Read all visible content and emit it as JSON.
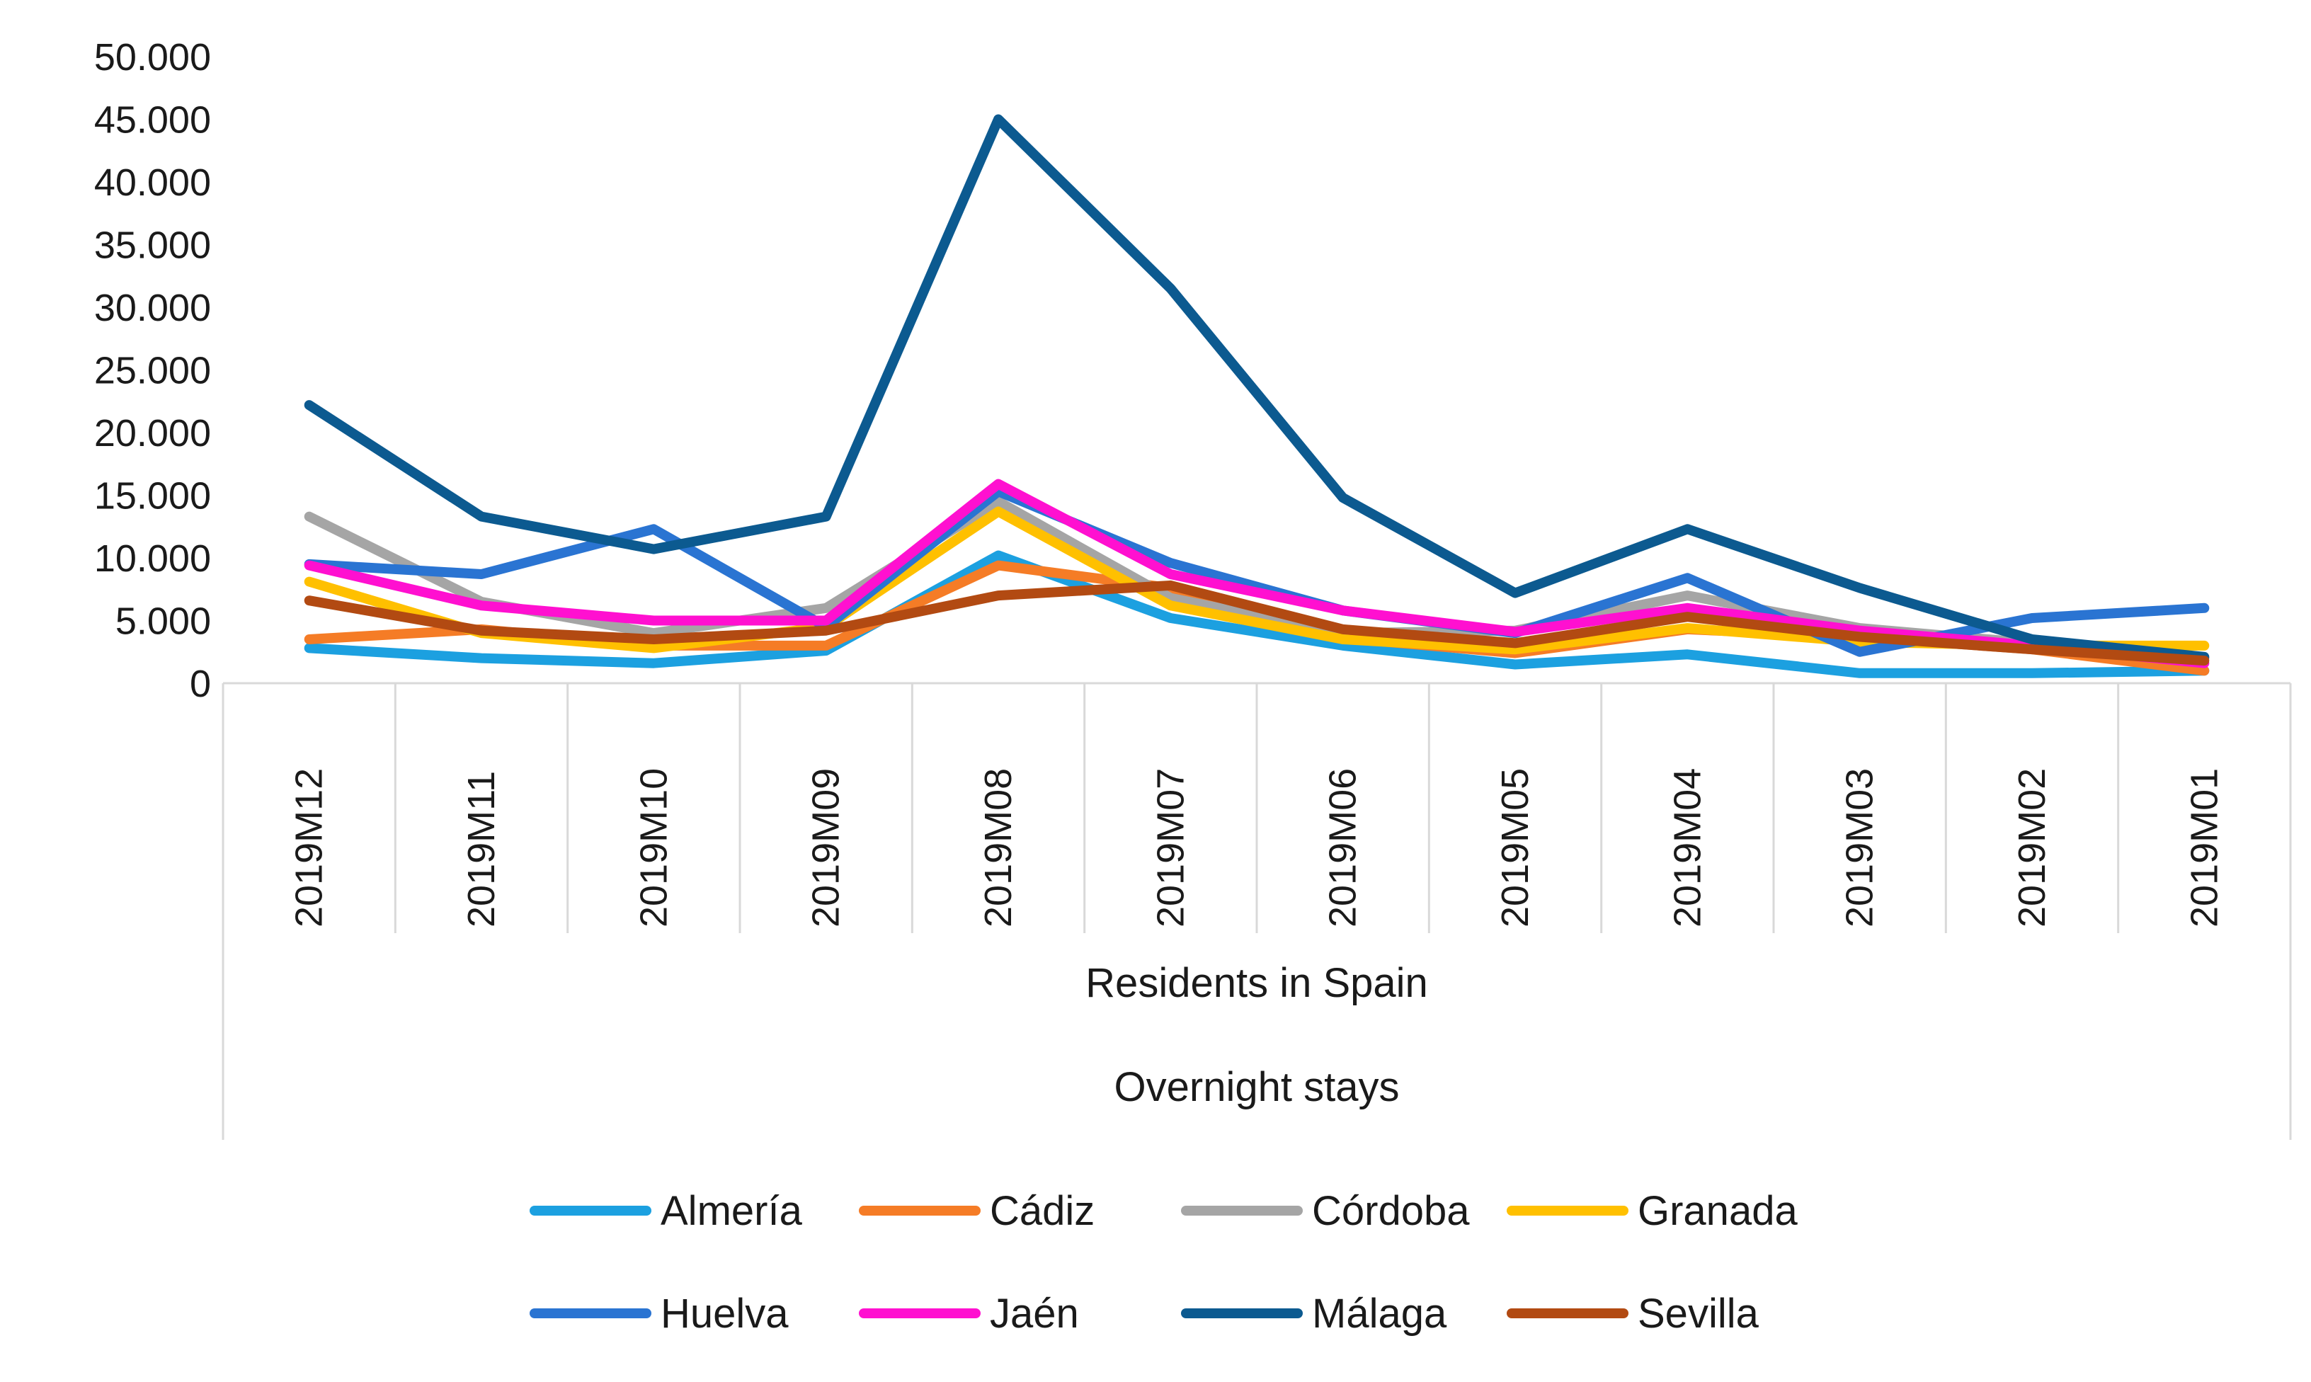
{
  "chart_data": {
    "type": "line",
    "title": "",
    "xlabel_levels": [
      "Residents in Spain",
      "Overnight stays"
    ],
    "ylabel": "",
    "ylim": [
      0,
      50000
    ],
    "yticks": [
      0,
      5000,
      10000,
      15000,
      20000,
      25000,
      30000,
      35000,
      40000,
      45000,
      50000
    ],
    "ytick_labels": [
      "0",
      "5.000",
      "10.000",
      "15.000",
      "20.000",
      "25.000",
      "30.000",
      "35.000",
      "40.000",
      "45.000",
      "50.000"
    ],
    "categories": [
      "2019M12",
      "2019M11",
      "2019M10",
      "2019M09",
      "2019M08",
      "2019M07",
      "2019M06",
      "2019M05",
      "2019M04",
      "2019M03",
      "2019M02",
      "2019M01"
    ],
    "grid": false,
    "legend_position": "bottom",
    "series": [
      {
        "name": "Almería",
        "color": "#1ca0e0",
        "values": [
          2800,
          2000,
          1600,
          2600,
          10200,
          5200,
          3000,
          1500,
          2300,
          800,
          800,
          1000
        ]
      },
      {
        "name": "Cádiz",
        "color": "#f57c26",
        "values": [
          3500,
          4300,
          3000,
          3000,
          9400,
          7600,
          3600,
          2400,
          4300,
          3700,
          2700,
          1000
        ]
      },
      {
        "name": "Córdoba",
        "color": "#a5a5a5",
        "values": [
          13300,
          6500,
          4000,
          6000,
          14500,
          6800,
          4000,
          4200,
          7000,
          4400,
          3200,
          2000
        ]
      },
      {
        "name": "Granada",
        "color": "#ffc000",
        "values": [
          8100,
          4000,
          2800,
          4500,
          13700,
          6200,
          3500,
          2700,
          4400,
          3300,
          3000,
          3000
        ]
      },
      {
        "name": "Huelva",
        "color": "#2a74d2",
        "values": [
          9500,
          8700,
          12300,
          4500,
          15300,
          9600,
          5800,
          4000,
          8400,
          2500,
          5200,
          6000
        ]
      },
      {
        "name": "Jaén",
        "color": "#ff10d0",
        "values": [
          9400,
          6200,
          5000,
          5000,
          15900,
          8700,
          5800,
          4100,
          6000,
          4200,
          3000,
          1600
        ]
      },
      {
        "name": "Málaga",
        "color": "#0c5a90",
        "values": [
          22200,
          13300,
          10700,
          13300,
          45000,
          31500,
          14800,
          7200,
          12300,
          7600,
          3500,
          2100
        ]
      },
      {
        "name": "Sevilla",
        "color": "#b24a12",
        "values": [
          6600,
          4200,
          3500,
          4200,
          7000,
          7800,
          4300,
          3200,
          5300,
          3700,
          2700,
          1800
        ]
      }
    ]
  }
}
